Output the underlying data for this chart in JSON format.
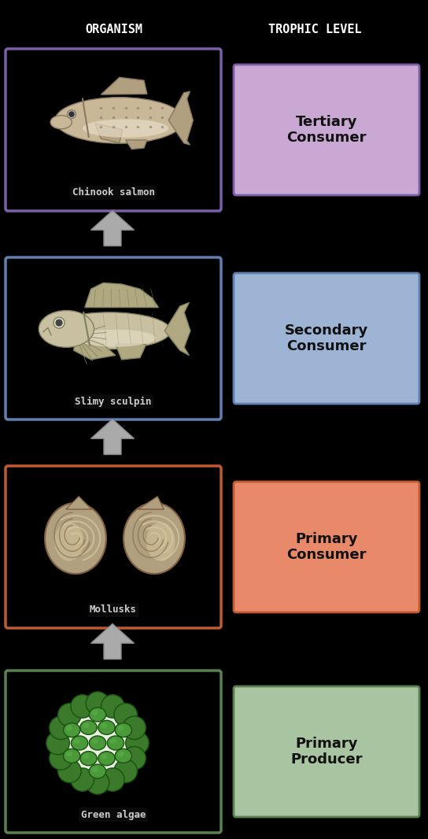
{
  "background_color": "#000000",
  "title_organism": "ORGANISM",
  "title_trophic": "TROPHIC LEVEL",
  "title_color": "#ffffff",
  "title_fontsize": 11,
  "levels": [
    {
      "name": "Chinook salmon",
      "label": "Chinook salmon",
      "trophic_label": "Tertiary\nConsumer",
      "trophic_box_color": "#c9a8d4",
      "trophic_edge_color": "#7b5ea7",
      "organism_edge_color": "#7b5ea7",
      "organism_bg": "#000000",
      "image_placeholder": "salmon"
    },
    {
      "name": "Slimy sculpin",
      "label": "Slimy sculpin",
      "trophic_label": "Secondary\nConsumer",
      "trophic_box_color": "#9eb4d4",
      "trophic_edge_color": "#6080b0",
      "organism_edge_color": "#6080b0",
      "organism_bg": "#000000",
      "image_placeholder": "sculpin"
    },
    {
      "name": "Mollusks",
      "label": "Mollusks",
      "trophic_label": "Primary\nConsumer",
      "trophic_box_color": "#e8896a",
      "trophic_edge_color": "#c05a30",
      "organism_edge_color": "#c05a30",
      "organism_bg": "#000000",
      "image_placeholder": "mollusk"
    },
    {
      "name": "Green algae",
      "label": "Green algae",
      "trophic_label": "Primary\nProducer",
      "trophic_box_color": "#a8c4a0",
      "trophic_edge_color": "#5a8050",
      "organism_edge_color": "#5a8050",
      "organism_bg": "#000000",
      "image_placeholder": "algae"
    }
  ],
  "arrow_color": "#aaaaaa",
  "label_fontsize": 9,
  "trophic_fontsize": 13
}
